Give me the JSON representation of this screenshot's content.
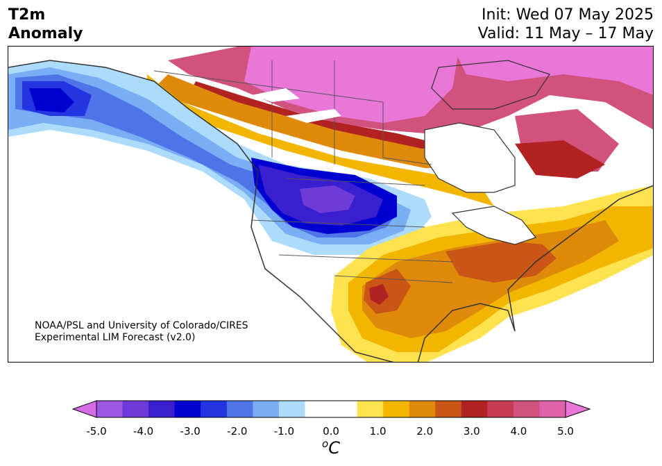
{
  "title": {
    "line1": "T2m",
    "line2": "Anomaly"
  },
  "dates": {
    "init": "Init: Wed 07 May 2025",
    "valid": "Valid: 11 May – 17 May"
  },
  "credit": {
    "line1": "NOAA/PSL and University of Colorado/CIRES",
    "line2": "Experimental LIM Forecast (v2.0)"
  },
  "colorbar": {
    "ticks": [
      "-5.0",
      "-4.0",
      "-3.0",
      "-2.0",
      "-1.0",
      "0.0",
      "1.0",
      "2.0",
      "3.0",
      "4.0",
      "5.0"
    ],
    "unit_base": "C",
    "unit_sup": "o",
    "colors": [
      "#d66be8",
      "#9b55e0",
      "#6e3ad8",
      "#3a1fcf",
      "#0000d0",
      "#2235e0",
      "#4e74e8",
      "#79aef5",
      "#acdbfc",
      "#ffffff",
      "#ffffff",
      "#ffe24f",
      "#f2b600",
      "#df8a0a",
      "#c95516",
      "#b22222",
      "#c63a52",
      "#d2527e",
      "#df63aa",
      "#e877d8"
    ]
  }
}
